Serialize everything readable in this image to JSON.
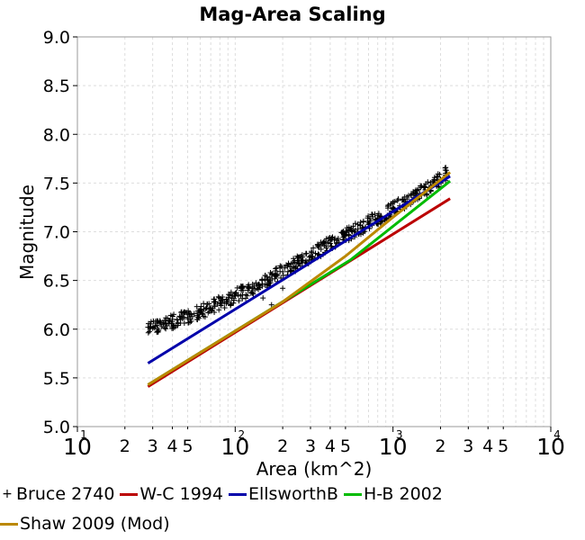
{
  "chart_data": {
    "type": "scatter",
    "title": "Mag-Area Scaling",
    "xlabel": "Area (km^2)",
    "ylabel": "Magnitude",
    "xscale": "log",
    "xlim": [
      10,
      10000
    ],
    "ylim": [
      5.0,
      9.0
    ],
    "x_major_ticks": [
      {
        "base": "10",
        "exp": "1",
        "value": 10
      },
      {
        "base": "10",
        "exp": "2",
        "value": 100
      },
      {
        "base": "10",
        "exp": "3",
        "value": 1000
      },
      {
        "base": "10",
        "exp": "4",
        "value": 10000
      }
    ],
    "x_minor_ticks": [
      {
        "label": "2",
        "value": 20
      },
      {
        "label": "3",
        "value": 30
      },
      {
        "label": "4",
        "value": 40
      },
      {
        "label": "5",
        "value": 50
      },
      {
        "label": "2",
        "value": 200
      },
      {
        "label": "3",
        "value": 300
      },
      {
        "label": "4",
        "value": 400
      },
      {
        "label": "5",
        "value": 500
      },
      {
        "label": "2",
        "value": 2000
      },
      {
        "label": "3",
        "value": 3000
      },
      {
        "label": "4",
        "value": 4000
      },
      {
        "label": "5",
        "value": 5000
      }
    ],
    "y_ticks": [
      "5.0",
      "5.5",
      "6.0",
      "6.5",
      "7.0",
      "7.5",
      "8.0",
      "8.5",
      "9.0"
    ],
    "grid": true,
    "legend_position": "bottom",
    "series": [
      {
        "name": "Bruce 2740",
        "kind": "scatter",
        "marker": "+",
        "color": "#000000",
        "points": [
          [
            28,
            6.02
          ],
          [
            30,
            6.01
          ],
          [
            32,
            6.04
          ],
          [
            35,
            6.05
          ],
          [
            38,
            6.06
          ],
          [
            40,
            6.08
          ],
          [
            45,
            6.1
          ],
          [
            50,
            6.12
          ],
          [
            55,
            6.16
          ],
          [
            60,
            6.18
          ],
          [
            70,
            6.22
          ],
          [
            80,
            6.27
          ],
          [
            90,
            6.3
          ],
          [
            100,
            6.34
          ],
          [
            120,
            6.4
          ],
          [
            140,
            6.45
          ],
          [
            160,
            6.5
          ],
          [
            180,
            6.55
          ],
          [
            200,
            6.59
          ],
          [
            250,
            6.68
          ],
          [
            300,
            6.75
          ],
          [
            350,
            6.82
          ],
          [
            400,
            6.88
          ],
          [
            450,
            6.93
          ],
          [
            500,
            6.96
          ],
          [
            600,
            7.03
          ],
          [
            700,
            7.09
          ],
          [
            800,
            7.14
          ],
          [
            1000,
            7.23
          ],
          [
            1200,
            7.31
          ],
          [
            1400,
            7.37
          ],
          [
            1600,
            7.43
          ],
          [
            1800,
            7.48
          ],
          [
            2000,
            7.54
          ],
          [
            2200,
            7.6
          ]
        ],
        "outliers": [
          [
            150,
            6.32
          ],
          [
            170,
            6.25
          ],
          [
            200,
            6.42
          ]
        ]
      },
      {
        "name": "W-C 1994",
        "kind": "line",
        "color": "#bb0000",
        "points": [
          [
            28,
            5.41
          ],
          [
            2300,
            7.34
          ]
        ]
      },
      {
        "name": "EllsworthB",
        "kind": "line",
        "color": "#0000aa",
        "points": [
          [
            28,
            5.65
          ],
          [
            2300,
            7.57
          ]
        ]
      },
      {
        "name": "H-B 2002",
        "kind": "line",
        "color": "#00bb00",
        "points": [
          [
            28,
            5.43
          ],
          [
            537,
            6.71
          ],
          [
            2300,
            7.52
          ]
        ]
      },
      {
        "name": "Shaw 2009 (Mod)",
        "kind": "line",
        "color": "#bb8800",
        "points": [
          [
            28,
            5.43
          ],
          [
            200,
            6.28
          ],
          [
            500,
            6.75
          ],
          [
            1000,
            7.15
          ],
          [
            2300,
            7.61
          ]
        ]
      }
    ]
  }
}
